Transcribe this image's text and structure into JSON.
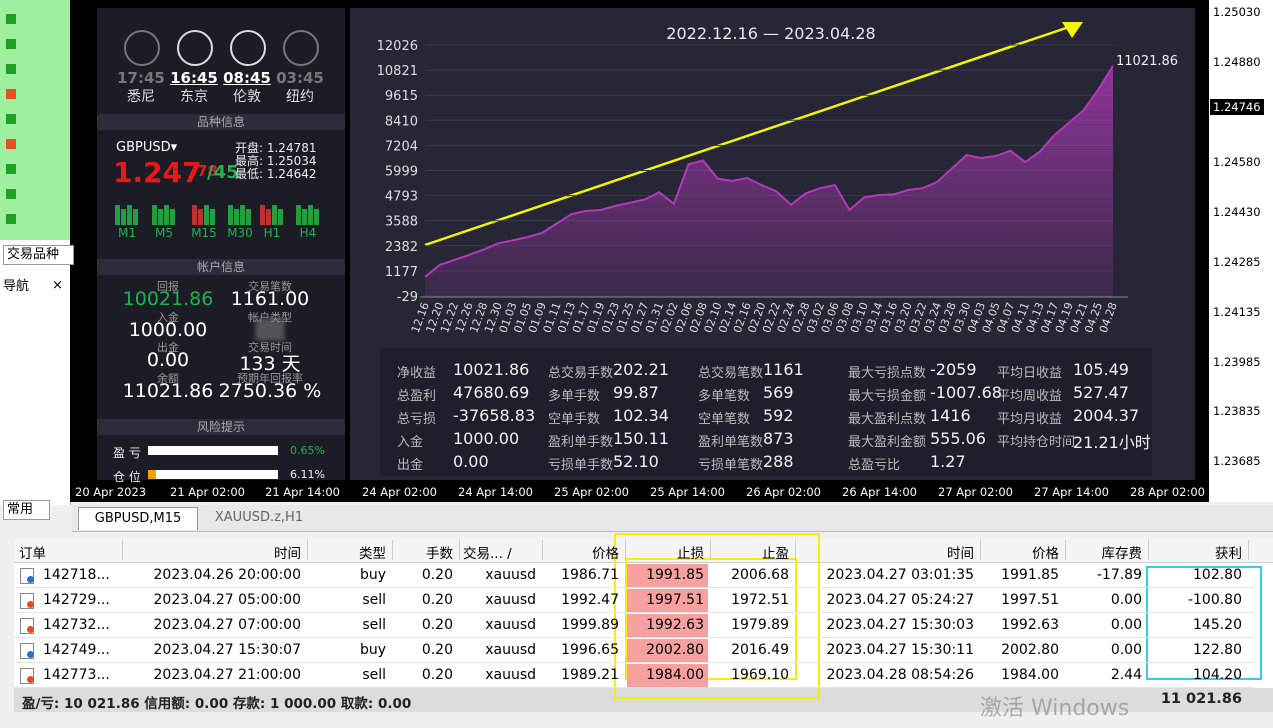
{
  "sidebar": {
    "tabs": [
      "交易品种",
      "导航",
      "常用"
    ]
  },
  "clocks": [
    {
      "time": "17:45",
      "city": "悉尼"
    },
    {
      "time": "16:45",
      "city": "东京"
    },
    {
      "time": "08:45",
      "city": "伦敦"
    },
    {
      "time": "03:45",
      "city": "纽约"
    }
  ],
  "symbol": {
    "header": "品种信息",
    "name": "GBPUSD▾",
    "bid": "1.247",
    "bid_small": "78",
    "ask": "/45",
    "open": "开盘: 1.24781",
    "high": "最高: 1.25034",
    "low": "最低: 1.24642",
    "timeframes": [
      "M1",
      "M5",
      "M15",
      "M30",
      "H1",
      "H4"
    ]
  },
  "account": {
    "header": "帐户信息",
    "items": [
      {
        "label": "回报",
        "value": "10021.86"
      },
      {
        "label": "交易笔数",
        "value": "1161.00"
      },
      {
        "label": "入金",
        "value": "1000.00"
      },
      {
        "label": "帐户类型",
        "value": "▒▒"
      },
      {
        "label": "出金",
        "value": "0.00"
      },
      {
        "label": "交易时间",
        "value": "133 天"
      },
      {
        "label": "余额",
        "value": "11021.86"
      },
      {
        "label": "预期年回报率",
        "value": "2750.36 %"
      }
    ]
  },
  "risk": {
    "header": "风险提示",
    "items": [
      {
        "label": "盈 亏",
        "value": "0.65%"
      },
      {
        "label": "仓 位",
        "value": "6.11%"
      }
    ]
  },
  "chart_data": {
    "type": "area",
    "title": "2022.12.16 — 2023.04.28",
    "color": "#b03ab8",
    "categories": [
      "12.16",
      "12.20",
      "12.22",
      "12.26",
      "12.28",
      "12.30",
      "01.03",
      "01.05",
      "01.09",
      "01.11",
      "01.13",
      "01.17",
      "01.19",
      "01.23",
      "01.25",
      "01.27",
      "01.31",
      "02.02",
      "02.06",
      "02.08",
      "02.10",
      "02.14",
      "02.16",
      "02.20",
      "02.22",
      "02.24",
      "02.28",
      "03.02",
      "03.06",
      "03.08",
      "03.10",
      "03.14",
      "03.16",
      "03.20",
      "03.22",
      "03.24",
      "03.28",
      "03.30",
      "04.03",
      "04.05",
      "04.07",
      "04.11",
      "04.13",
      "04.17",
      "04.19",
      "04.21",
      "04.25",
      "04.28"
    ],
    "values": [
      883,
      1460,
      1700,
      1940,
      2200,
      2500,
      2640,
      2800,
      3000,
      3450,
      3900,
      4060,
      4100,
      4300,
      4450,
      4600,
      4950,
      4400,
      6300,
      6480,
      5600,
      5500,
      5640,
      5300,
      5000,
      4350,
      4900,
      5150,
      5300,
      4100,
      4700,
      4820,
      4850,
      5060,
      5150,
      5450,
      6100,
      6740,
      6600,
      6700,
      6950,
      6400,
      6900,
      7700,
      8300,
      8900,
      9900,
      11021.86
    ],
    "end_label": "11021.86",
    "ylim": [
      -29,
      12026
    ],
    "yticks": [
      -29,
      1177,
      2382,
      3588,
      4793,
      5999,
      7204,
      8410,
      9615,
      10821,
      12026
    ]
  },
  "stats": [
    [
      [
        "净收益",
        "10021.86"
      ],
      [
        "总交易手数",
        "202.21"
      ],
      [
        "总交易笔数",
        "1161"
      ],
      [
        "最大亏损点数",
        "-2059"
      ],
      [
        "平均日收益",
        "105.49"
      ]
    ],
    [
      [
        "总盈利",
        "47680.69"
      ],
      [
        "多单手数",
        "99.87"
      ],
      [
        "多单笔数",
        "569"
      ],
      [
        "最大亏损金额",
        "-1007.68"
      ],
      [
        "平均周收益",
        "527.47"
      ]
    ],
    [
      [
        "总亏损",
        "-37658.83"
      ],
      [
        "空单手数",
        "102.34"
      ],
      [
        "空单笔数",
        "592"
      ],
      [
        "最大盈利点数",
        "1416"
      ],
      [
        "平均月收益",
        "2004.37"
      ]
    ],
    [
      [
        "入金",
        "1000.00"
      ],
      [
        "盈利单手数",
        "150.11"
      ],
      [
        "盈利单笔数",
        "873"
      ],
      [
        "最大盈利金额",
        "555.06"
      ],
      [
        "平均持仓时间",
        "21.21小时"
      ]
    ],
    [
      [
        "出金",
        "0.00"
      ],
      [
        "亏损单手数",
        "52.10"
      ],
      [
        "亏损单笔数",
        "288"
      ],
      [
        "总盈亏比",
        "1.27"
      ]
    ]
  ],
  "price_axis": [
    "1.25030",
    "1.24880",
    "1.24746",
    "1.24580",
    "1.24430",
    "1.24285",
    "1.24135",
    "1.23985",
    "1.23835",
    "1.23685"
  ],
  "time_axis": [
    "20 Apr 2023",
    "21 Apr 02:00",
    "21 Apr 14:00",
    "24 Apr 02:00",
    "24 Apr 14:00",
    "25 Apr 02:00",
    "25 Apr 14:00",
    "26 Apr 02:00",
    "26 Apr 14:00",
    "27 Apr 02:00",
    "27 Apr 14:00",
    "28 Apr 02:00"
  ],
  "tabs": [
    "GBPUSD,M15",
    "XAUUSD.z,H1"
  ],
  "orders": {
    "columns": [
      "订单",
      "时间",
      "类型",
      "手数",
      "交易... /",
      "价格",
      "止损",
      "止盈",
      "时间",
      "价格",
      "库存费",
      "获利"
    ],
    "rows": [
      [
        "142718...",
        "2023.04.26 20:00:00",
        "buy",
        "0.20",
        "xauusd",
        "1986.71",
        "1991.85",
        "2006.68",
        "2023.04.27 03:01:35",
        "1991.85",
        "-17.89",
        "102.80"
      ],
      [
        "142729...",
        "2023.04.27 05:00:00",
        "sell",
        "0.20",
        "xauusd",
        "1992.47",
        "1997.51",
        "1972.51",
        "2023.04.27 05:24:27",
        "1997.51",
        "0.00",
        "-100.80"
      ],
      [
        "142732...",
        "2023.04.27 07:00:00",
        "sell",
        "0.20",
        "xauusd",
        "1999.89",
        "1992.63",
        "1979.89",
        "2023.04.27 15:30:03",
        "1992.63",
        "0.00",
        "145.20"
      ],
      [
        "142749...",
        "2023.04.27 15:30:07",
        "buy",
        "0.20",
        "xauusd",
        "1996.65",
        "2002.80",
        "2016.49",
        "2023.04.27 15:30:11",
        "2002.80",
        "0.00",
        "122.80"
      ],
      [
        "142773...",
        "2023.04.27 21:00:00",
        "sell",
        "0.20",
        "xauusd",
        "1989.21",
        "1984.00",
        "1969.10",
        "2023.04.28 08:54:26",
        "1984.00",
        "2.44",
        "104.20"
      ]
    ]
  },
  "footer": {
    "summary": "盈/亏: 10 021.86  信用额: 0.00  存款: 1 000.00  取款: 0.00",
    "total": "11 021.86"
  },
  "watermark": "激活 Windows"
}
